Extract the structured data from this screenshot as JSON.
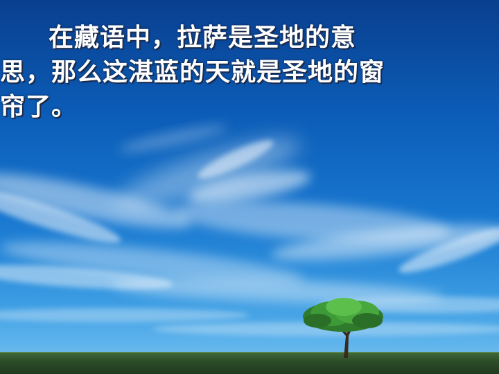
{
  "caption": {
    "line1": "在藏语中，拉萨是圣地的意",
    "line2": "思，那么这湛蓝的天就是圣地的窗",
    "line3": "帘了。"
  },
  "colors": {
    "sky_top": "#0a3f8f",
    "sky_bottom": "#8cc8f0",
    "ground": "#2b4d28",
    "text": "#ffffff"
  }
}
